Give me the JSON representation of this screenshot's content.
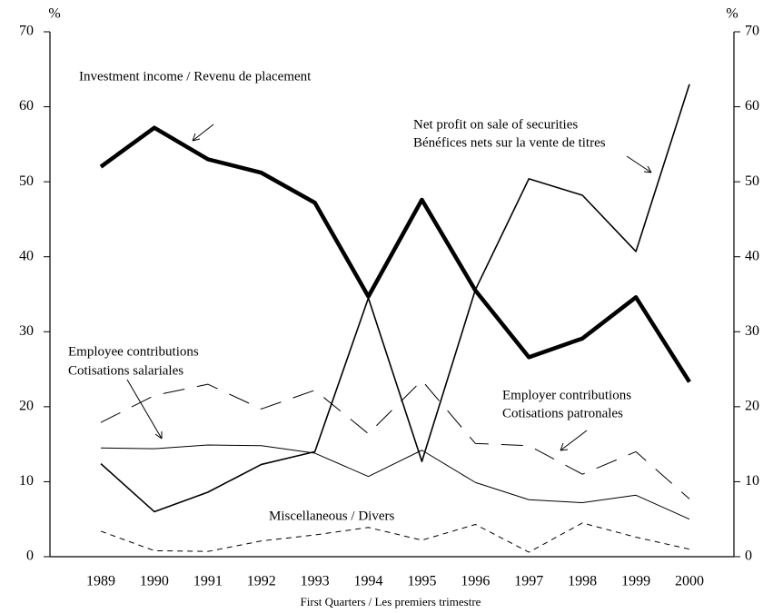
{
  "chart_data": {
    "type": "line",
    "ylabel": "%",
    "y2label": "%",
    "xlabel": "First Quarters / Les premiers trimestre",
    "categories": [
      "1989",
      "1990",
      "1991",
      "1992",
      "1993",
      "1994",
      "1995",
      "1996",
      "1997",
      "1998",
      "1999",
      "2000"
    ],
    "ylim": [
      0,
      70
    ],
    "yticks": [
      0,
      10,
      20,
      30,
      40,
      50,
      60,
      70
    ],
    "y2lim": [
      0,
      70
    ],
    "y2ticks": [
      0,
      10,
      20,
      30,
      40,
      50,
      60,
      70
    ],
    "series": [
      {
        "label": [
          "Investment income / Revenu de  placement"
        ],
        "color": "#000000",
        "style": "thick",
        "values": [
          52,
          57.2,
          53,
          51.2,
          47.2,
          34.7,
          47.6,
          35.5,
          26.6,
          29.1,
          34.6,
          23.3
        ]
      },
      {
        "label": [
          "Net profit on sale of securities",
          "Bénéfices nets sur la vente de titres"
        ],
        "color": "#000000",
        "style": "solid",
        "values": [
          12.4,
          6,
          8.6,
          12.3,
          14,
          34.5,
          12.7,
          35.6,
          50.4,
          48.2,
          40.7,
          63
        ]
      },
      {
        "label": [
          "Employee contributions",
          "Cotisations salariales"
        ],
        "color": "#000000",
        "style": "thin",
        "values": [
          14.5,
          14.4,
          14.9,
          14.8,
          13.8,
          10.7,
          14.2,
          9.9,
          7.6,
          7.2,
          8.2,
          5
        ]
      },
      {
        "label": [
          "Employer contributions",
          "Cotisations patronales"
        ],
        "color": "#000000",
        "style": "longdash",
        "values": [
          17.9,
          21.5,
          23,
          19.7,
          22.2,
          16.4,
          23.5,
          15.1,
          14.8,
          11,
          14,
          7.7
        ]
      },
      {
        "label": [
          "Miscellaneous / Divers"
        ],
        "color": "#000000",
        "style": "shortdash",
        "values": [
          3.4,
          0.8,
          0.7,
          2.1,
          2.9,
          3.9,
          2.2,
          4.3,
          0.6,
          4.5,
          2.6,
          1
        ]
      }
    ]
  }
}
